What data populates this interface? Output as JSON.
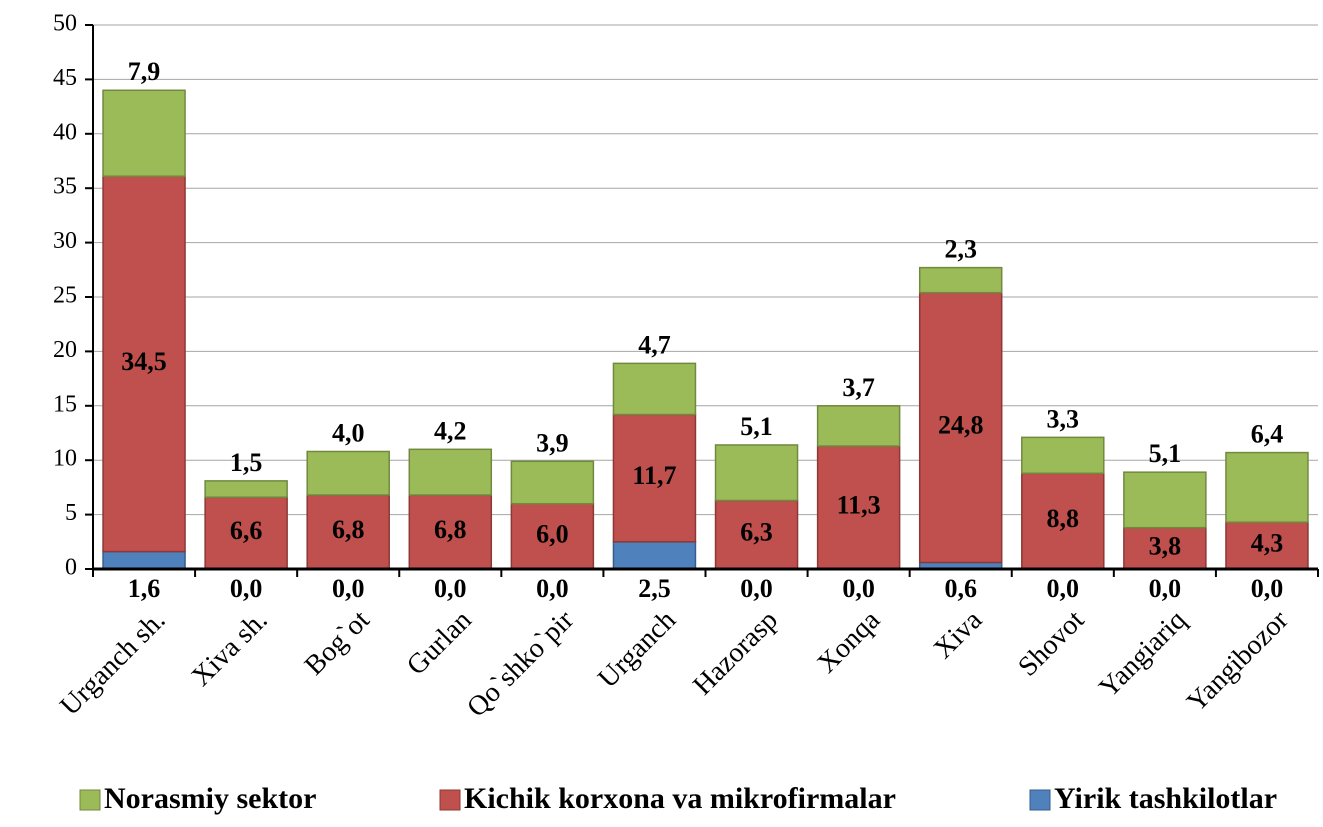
{
  "chart_data": {
    "type": "stacked_bar",
    "categories": [
      "Urganch sh.",
      "Xiva sh.",
      "Bog`ot",
      "Gurlan",
      "Qo`shko`pir",
      "Urganch",
      "Hazorasp",
      "Xonqa",
      "Xiva",
      "Shovot",
      "Yangiariq",
      "Yangibozor"
    ],
    "series": [
      {
        "name": "Norasmiy sektor",
        "color": "#9bbb59",
        "values": [
          7.9,
          1.5,
          4.0,
          4.2,
          3.9,
          4.7,
          5.1,
          3.7,
          2.3,
          3.3,
          5.1,
          6.4
        ],
        "value_labels": [
          "7,9",
          "1,5",
          "4,0",
          "4,2",
          "3,9",
          "4,7",
          "5,1",
          "3,7",
          "2,3",
          "3,3",
          "5,1",
          "6,4"
        ]
      },
      {
        "name": "Kichik korxona va mikrofirmalar",
        "color": "#c0504d",
        "values": [
          34.5,
          6.6,
          6.8,
          6.8,
          6.0,
          11.7,
          6.3,
          11.3,
          24.8,
          8.8,
          3.8,
          4.3
        ],
        "value_labels": [
          "34,5",
          "6,6",
          "6,8",
          "6,8",
          "6,0",
          "11,7",
          "6,3",
          "11,3",
          "24,8",
          "8,8",
          "3,8",
          "4,3"
        ]
      },
      {
        "name": "Yirik tashkilotlar",
        "color": "#4f81bd",
        "values": [
          1.6,
          0.0,
          0.0,
          0.0,
          0.0,
          2.5,
          0.0,
          0.0,
          0.6,
          0.0,
          0.0,
          0.0
        ],
        "value_labels": [
          "1,6",
          "0,0",
          "0,0",
          "0,0",
          "0,0",
          "2,5",
          "0,0",
          "0,0",
          "0,6",
          "0,0",
          "0,0",
          "0,0"
        ]
      }
    ],
    "ylim": [
      0,
      50
    ],
    "yticks": [
      0,
      5,
      10,
      15,
      20,
      25,
      30,
      35,
      40,
      45,
      50
    ],
    "grid": true
  }
}
